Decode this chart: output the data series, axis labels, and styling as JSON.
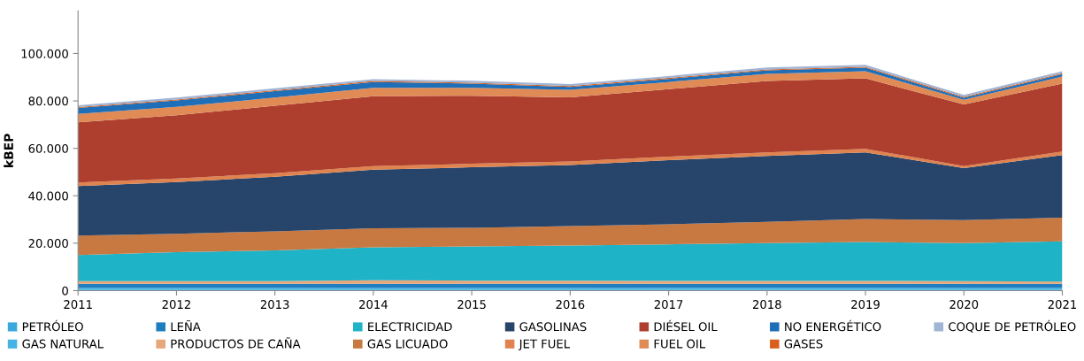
{
  "chart_data": {
    "type": "area",
    "stacked": true,
    "ylabel": "kBEP",
    "x": [
      2011,
      2012,
      2013,
      2014,
      2015,
      2016,
      2017,
      2018,
      2019,
      2020,
      2021
    ],
    "xlim": [
      2011,
      2021
    ],
    "xticks": [
      2011,
      2012,
      2013,
      2014,
      2015,
      2016,
      2017,
      2018,
      2019,
      2020,
      2021
    ],
    "ylim": [
      0,
      118000
    ],
    "yticks": [
      {
        "value": 0,
        "label": "0"
      },
      {
        "value": 20000,
        "label": "20.000"
      },
      {
        "value": 40000,
        "label": "40.000"
      },
      {
        "value": 60000,
        "label": "60.000"
      },
      {
        "value": 80000,
        "label": "80.000"
      },
      {
        "value": 100000,
        "label": "100.000"
      }
    ],
    "grid": false,
    "legend": "bottom",
    "series": [
      {
        "name": "PETRÓLEO",
        "color": "#3aa8dc",
        "values": [
          300,
          300,
          300,
          300,
          300,
          300,
          300,
          300,
          300,
          300,
          300
        ]
      },
      {
        "name": "GAS NATURAL",
        "color": "#45b4e4",
        "values": [
          800,
          800,
          800,
          800,
          800,
          800,
          800,
          800,
          800,
          800,
          800
        ]
      },
      {
        "name": "LEÑA",
        "color": "#1f7ec0",
        "values": [
          1800,
          1800,
          1800,
          1800,
          1800,
          1800,
          1800,
          1800,
          1800,
          1800,
          1800
        ]
      },
      {
        "name": "PRODUCTOS DE CAÑA",
        "color": "#e8a77a",
        "values": [
          1100,
          1100,
          1100,
          1500,
          1300,
          1300,
          1200,
          1200,
          1200,
          1100,
          900
        ]
      },
      {
        "name": "ELECTRICIDAD",
        "color": "#1fb3c8",
        "values": [
          11000,
          12200,
          13000,
          13900,
          14400,
          14800,
          15400,
          15900,
          16400,
          16000,
          17000
        ]
      },
      {
        "name": "GAS LICUADO",
        "color": "#c87941",
        "values": [
          8200,
          7800,
          8000,
          8000,
          7900,
          8200,
          8500,
          9000,
          9700,
          9700,
          10000
        ]
      },
      {
        "name": "GASOLINAS",
        "color": "#27446a",
        "values": [
          20900,
          21800,
          23000,
          24700,
          25500,
          25800,
          27000,
          27800,
          28100,
          22000,
          26400
        ]
      },
      {
        "name": "JET FUEL",
        "color": "#e0834e",
        "values": [
          1500,
          1500,
          1500,
          1500,
          1500,
          1500,
          1500,
          1500,
          1500,
          800,
          1500
        ]
      },
      {
        "name": "DIÉSEL OIL",
        "color": "#ae3f2e",
        "values": [
          25400,
          26700,
          28500,
          29500,
          28700,
          27000,
          28500,
          30100,
          29700,
          26000,
          28600
        ]
      },
      {
        "name": "FUEL OIL",
        "color": "#e08a56",
        "values": [
          3500,
          3500,
          3400,
          3500,
          3300,
          3200,
          3000,
          3000,
          3000,
          2000,
          3000
        ]
      },
      {
        "name": "NO ENERGÉTICO",
        "color": "#1e6fb8",
        "values": [
          2500,
          2700,
          2700,
          2500,
          1800,
          1200,
          1300,
          1500,
          1500,
          800,
          1000
        ]
      },
      {
        "name": "GASES",
        "color": "#d85f1e",
        "values": [
          400,
          400,
          400,
          400,
          400,
          400,
          400,
          400,
          400,
          400,
          400
        ]
      },
      {
        "name": "COQUE DE PETRÓLEO",
        "color": "#a0b4d4",
        "values": [
          800,
          800,
          800,
          800,
          800,
          800,
          800,
          800,
          800,
          800,
          800
        ]
      }
    ]
  }
}
